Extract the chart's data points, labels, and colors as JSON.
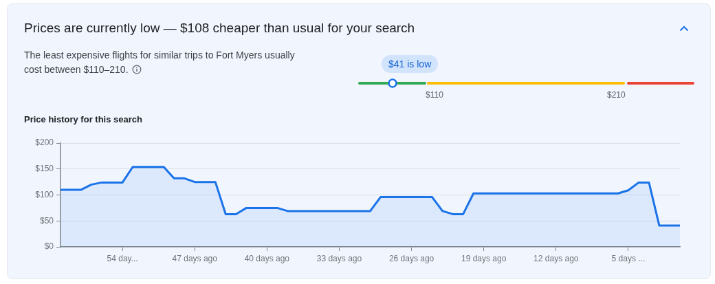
{
  "chart_data": [
    {
      "type": "other",
      "title": "Prices are currently low — $108 cheaper than usual for your search",
      "subtitle": "The least expensive flights for similar trips to Fort Myers usually cost between $110–210.",
      "annotations": [
        "$41 is low",
        "$110",
        "$210"
      ]
    },
    {
      "type": "area",
      "title": "Price history for this search",
      "categories": [
        null,
        null,
        null,
        null,
        null,
        null,
        "54 day...",
        null,
        null,
        null,
        null,
        null,
        null,
        "47 days ago",
        null,
        null,
        null,
        null,
        null,
        null,
        "40 days ago",
        null,
        null,
        null,
        null,
        null,
        null,
        "33 days ago",
        null,
        null,
        null,
        null,
        null,
        null,
        "26 days ago",
        null,
        null,
        null,
        null,
        null,
        null,
        "19 days ago",
        null,
        null,
        null,
        null,
        null,
        null,
        "12 days ago",
        null,
        null,
        null,
        null,
        null,
        null,
        "5 days ...",
        null,
        null,
        null,
        null,
        null
      ],
      "series": [
        {
          "color": "#1a73e8",
          "values": [
            110,
            110,
            110,
            120,
            124,
            124,
            124,
            154,
            154,
            154,
            154,
            132,
            132,
            125,
            125,
            125,
            63,
            63,
            75,
            75,
            75,
            75,
            69,
            69,
            69,
            69,
            69,
            69,
            69,
            69,
            69,
            96,
            96,
            96,
            96,
            96,
            96,
            69,
            63,
            63,
            103,
            103,
            103,
            103,
            103,
            103,
            103,
            103,
            103,
            103,
            103,
            103,
            103,
            103,
            103,
            109,
            124,
            124,
            41,
            41,
            41
          ]
        }
      ],
      "ylim": [
        0,
        200
      ],
      "yticks": [
        {
          "value": 0,
          "label": "$0"
        },
        {
          "value": 50,
          "label": "$50"
        },
        {
          "value": 100,
          "label": "$100"
        },
        {
          "value": 150,
          "label": "$150"
        },
        {
          "value": 200,
          "label": "$200"
        }
      ],
      "grid": "y",
      "legend": false,
      "marker": "none",
      "line_style": "solid"
    }
  ]
}
